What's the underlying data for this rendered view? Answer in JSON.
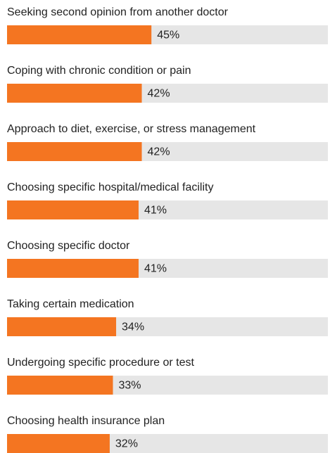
{
  "chart_data": {
    "type": "bar",
    "categories": [
      "Seeking second opinion from another doctor",
      "Coping with chronic condition or pain",
      "Approach to diet, exercise, or stress management",
      "Choosing specific hospital/medical facility",
      "Choosing specific doctor",
      "Taking certain medication",
      "Undergoing specific procedure or test",
      "Choosing health insurance plan"
    ],
    "values": [
      45,
      42,
      42,
      41,
      41,
      34,
      33,
      32
    ],
    "value_labels": [
      "45%",
      "42%",
      "42%",
      "41%",
      "41%",
      "34%",
      "33%",
      "32%"
    ],
    "color": "#f47521",
    "track_color": "#e6e6e6",
    "xlim": [
      0,
      100
    ]
  }
}
